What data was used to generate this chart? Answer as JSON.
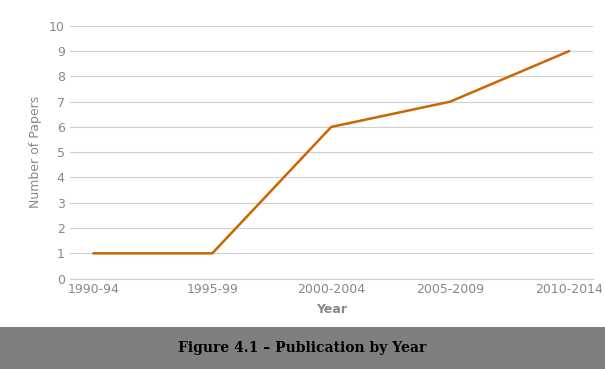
{
  "categories": [
    "1990-94",
    "1995-99",
    "2000-2004",
    "2005-2009",
    "2010-2014"
  ],
  "values": [
    1,
    1,
    6,
    7,
    9
  ],
  "line_color": "#CC6600",
  "line_width": 1.8,
  "title": "Figure 4.1 – Publication by Year",
  "xlabel": "Year",
  "ylabel": "Number of Papers",
  "ylim": [
    0,
    10
  ],
  "yticks": [
    0,
    1,
    2,
    3,
    4,
    5,
    6,
    7,
    8,
    9,
    10
  ],
  "grid_color": "#d0d0d0",
  "bg_color": "#ffffff",
  "caption_bg": "#7f7f7f",
  "caption_text_color": "#000000",
  "caption_fontsize": 10,
  "axis_label_fontsize": 9,
  "tick_fontsize": 9,
  "tick_color": "#888888",
  "label_color": "#555555"
}
